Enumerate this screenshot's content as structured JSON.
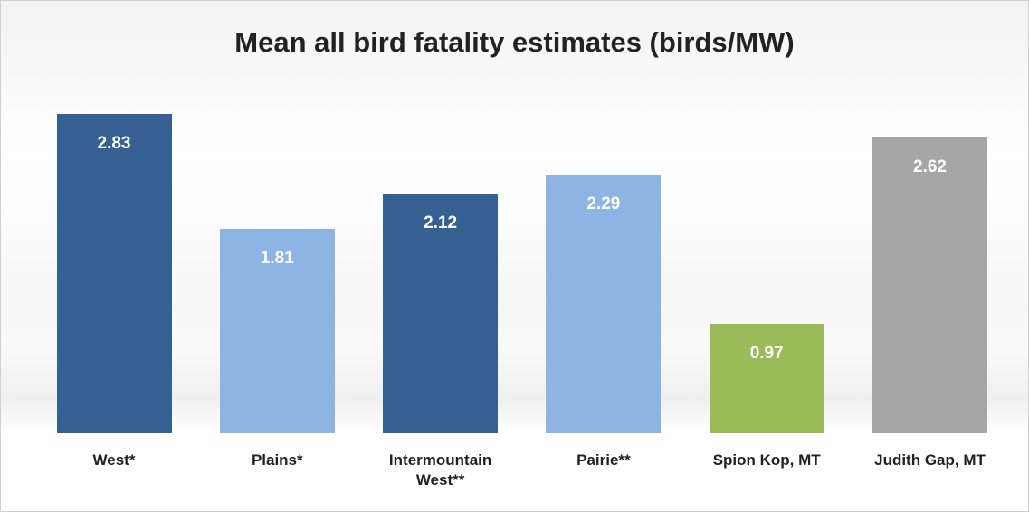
{
  "chart_data": {
    "type": "bar",
    "title": "Mean all bird fatality estimates (birds/MW)",
    "categories": [
      "West*",
      "Plains*",
      "Intermountain West**",
      "Pairie**",
      "Spion Kop, MT",
      "Judith Gap, MT"
    ],
    "values": [
      2.83,
      1.81,
      2.12,
      2.29,
      0.97,
      2.62
    ],
    "colors": [
      "#376092",
      "#8eb4e3",
      "#376092",
      "#8eb4e3",
      "#9bbb59",
      "#a6a6a6"
    ]
  }
}
